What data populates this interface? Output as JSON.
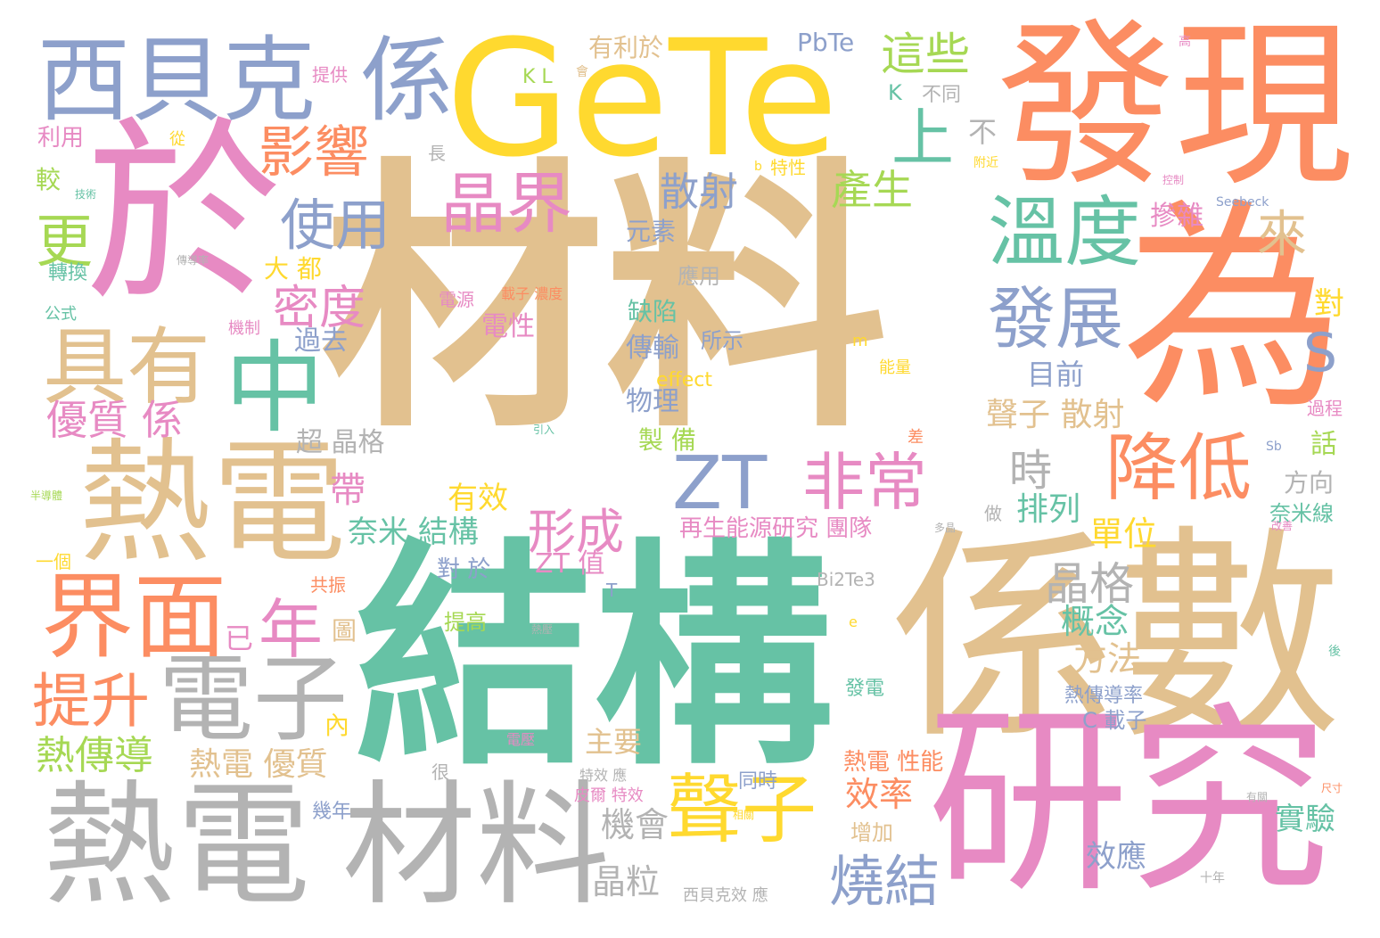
{
  "palette": {
    "tan": "#e2c18f",
    "green": "#66c2a5",
    "orange": "#fc8d62",
    "pink": "#e78ac3",
    "yellow": "#ffd92f",
    "blue": "#8da0cb",
    "gray": "#b3b3b3",
    "lime": "#a6d854"
  },
  "words": [
    {
      "text": "材料",
      "color": "tan"
    },
    {
      "text": "結構",
      "color": "green"
    },
    {
      "text": "係數",
      "color": "tan"
    },
    {
      "text": "於",
      "color": "pink"
    },
    {
      "text": "GeTe",
      "color": "yellow"
    },
    {
      "text": "發現",
      "color": "orange"
    },
    {
      "text": "為",
      "color": "orange"
    },
    {
      "text": "研究",
      "color": "pink"
    },
    {
      "text": "熱電",
      "color": "tan"
    },
    {
      "text": "熱電",
      "color": "gray"
    },
    {
      "text": "材料",
      "color": "gray"
    },
    {
      "text": "西貝克",
      "color": "blue"
    },
    {
      "text": "係",
      "color": "blue"
    },
    {
      "text": "中",
      "color": "green"
    },
    {
      "text": "具有",
      "color": "tan"
    },
    {
      "text": "界面",
      "color": "orange"
    },
    {
      "text": "電子",
      "color": "gray"
    },
    {
      "text": "聲子",
      "color": "yellow"
    },
    {
      "text": "溫度",
      "color": "green"
    },
    {
      "text": "降低",
      "color": "orange"
    },
    {
      "text": "發展",
      "color": "blue"
    },
    {
      "text": "晶界",
      "color": "pink"
    },
    {
      "text": "非常",
      "color": "pink"
    },
    {
      "text": "ZT",
      "color": "blue"
    },
    {
      "text": "影響",
      "color": "orange"
    },
    {
      "text": "使用",
      "color": "blue"
    },
    {
      "text": "提升",
      "color": "orange"
    },
    {
      "text": "年",
      "color": "pink"
    },
    {
      "text": "燒結",
      "color": "blue"
    },
    {
      "text": "上",
      "color": "green"
    },
    {
      "text": "這些",
      "color": "lime"
    },
    {
      "text": "晶格",
      "color": "gray"
    },
    {
      "text": "來",
      "color": "tan"
    },
    {
      "text": "S",
      "color": "blue"
    },
    {
      "text": "更",
      "color": "lime"
    },
    {
      "text": "形成",
      "color": "pink"
    },
    {
      "text": "熱傳導",
      "color": "lime"
    },
    {
      "text": "優質 係",
      "color": "pink"
    },
    {
      "text": "密度",
      "color": "pink"
    },
    {
      "text": "散射",
      "color": "blue"
    },
    {
      "text": "產生",
      "color": "lime"
    },
    {
      "text": "時",
      "color": "gray"
    },
    {
      "text": "熱電 優質",
      "color": "tan"
    },
    {
      "text": "奈米 結構",
      "color": "green"
    },
    {
      "text": "帶",
      "color": "pink"
    },
    {
      "text": "有效",
      "color": "yellow"
    },
    {
      "text": "排列",
      "color": "green"
    },
    {
      "text": "單位",
      "color": "yellow"
    },
    {
      "text": "聲子 散射",
      "color": "tan"
    },
    {
      "text": "效率",
      "color": "orange"
    },
    {
      "text": "機會",
      "color": "gray"
    },
    {
      "text": "晶粒",
      "color": "gray"
    },
    {
      "text": "概念",
      "color": "green"
    },
    {
      "text": "方法",
      "color": "tan"
    },
    {
      "text": "實驗",
      "color": "green"
    },
    {
      "text": "效應",
      "color": "blue"
    },
    {
      "text": "熱電 性能",
      "color": "orange"
    },
    {
      "text": "再生能源研究 團隊",
      "color": "pink"
    },
    {
      "text": "ZT 值",
      "color": "pink"
    },
    {
      "text": "元素",
      "color": "blue"
    },
    {
      "text": "有利於",
      "color": "tan"
    },
    {
      "text": "PbTe",
      "color": "blue"
    },
    {
      "text": "傳輸",
      "color": "blue"
    },
    {
      "text": "物理",
      "color": "blue"
    },
    {
      "text": "缺陷",
      "color": "green"
    },
    {
      "text": "電性",
      "color": "pink"
    },
    {
      "text": "超 晶格",
      "color": "gray"
    },
    {
      "text": "過去",
      "color": "blue"
    },
    {
      "text": "大 都",
      "color": "yellow"
    },
    {
      "text": "主要",
      "color": "tan"
    },
    {
      "text": "目前",
      "color": "blue"
    },
    {
      "text": "摻雜",
      "color": "pink"
    },
    {
      "text": "方向",
      "color": "gray"
    },
    {
      "text": "奈米線",
      "color": "green"
    },
    {
      "text": "話",
      "color": "lime"
    },
    {
      "text": "對",
      "color": "yellow"
    },
    {
      "text": "應用",
      "color": "gray"
    },
    {
      "text": "所示",
      "color": "blue"
    },
    {
      "text": "製 備",
      "color": "lime"
    },
    {
      "text": "對 於",
      "color": "blue"
    },
    {
      "text": "提高",
      "color": "lime"
    },
    {
      "text": "已",
      "color": "pink"
    },
    {
      "text": "圖",
      "color": "tan"
    },
    {
      "text": "內",
      "color": "yellow"
    },
    {
      "text": "熱傳導率",
      "color": "blue"
    },
    {
      "text": "C 載子",
      "color": "blue"
    },
    {
      "text": "增加",
      "color": "tan"
    },
    {
      "text": "幾年",
      "color": "blue"
    },
    {
      "text": "同時",
      "color": "blue"
    },
    {
      "text": "發電",
      "color": "green"
    },
    {
      "text": "電源",
      "color": "pink"
    },
    {
      "text": "Bi2Te3",
      "color": "gray"
    },
    {
      "text": "effect",
      "color": "yellow"
    },
    {
      "text": "不同",
      "color": "gray"
    },
    {
      "text": "K",
      "color": "green"
    },
    {
      "text": "不",
      "color": "gray"
    },
    {
      "text": "利用",
      "color": "pink"
    },
    {
      "text": "較",
      "color": "lime"
    },
    {
      "text": "轉換",
      "color": "green"
    },
    {
      "text": "公式",
      "color": "green"
    },
    {
      "text": "一個",
      "color": "yellow"
    },
    {
      "text": "機制",
      "color": "pink"
    },
    {
      "text": "共振",
      "color": "orange"
    },
    {
      "text": "提供",
      "color": "pink"
    },
    {
      "text": "Seebeck",
      "color": "blue"
    },
    {
      "text": "熱壓",
      "color": "gray"
    },
    {
      "text": "長",
      "color": "gray"
    },
    {
      "text": "做",
      "color": "gray"
    },
    {
      "text": "很",
      "color": "gray"
    },
    {
      "text": "十年",
      "color": "gray"
    },
    {
      "text": "過程",
      "color": "pink"
    },
    {
      "text": "能量",
      "color": "yellow"
    },
    {
      "text": "特性",
      "color": "yellow"
    },
    {
      "text": "載子 濃度",
      "color": "orange"
    },
    {
      "text": "特效 應",
      "color": "gray"
    },
    {
      "text": "皮爾 特效",
      "color": "pink"
    },
    {
      "text": "電壓",
      "color": "pink"
    },
    {
      "text": "西貝克效 應",
      "color": "gray"
    },
    {
      "text": "m",
      "color": "yellow"
    },
    {
      "text": "T",
      "color": "blue"
    },
    {
      "text": "e",
      "color": "yellow"
    },
    {
      "text": "b",
      "color": "yellow"
    },
    {
      "text": "K L",
      "color": "green"
    },
    {
      "text": "會",
      "color": "tan"
    },
    {
      "text": "高",
      "color": "pink"
    },
    {
      "text": "技術",
      "color": "green"
    },
    {
      "text": "從",
      "color": "yellow"
    },
    {
      "text": "傳導率",
      "color": "gray"
    },
    {
      "text": "引入",
      "color": "green"
    },
    {
      "text": "多晶",
      "color": "gray"
    },
    {
      "text": "半導體",
      "color": "lime"
    },
    {
      "text": "改善",
      "color": "pink"
    },
    {
      "text": "尺寸",
      "color": "orange"
    },
    {
      "text": "後",
      "color": "green"
    },
    {
      "text": "有關",
      "color": "gray"
    },
    {
      "text": "相關",
      "color": "yellow"
    },
    {
      "text": "附近",
      "color": "yellow"
    },
    {
      "text": "控制",
      "color": "pink"
    },
    {
      "text": "Sb",
      "color": "blue"
    },
    {
      "text": "差",
      "color": "orange"
    }
  ]
}
